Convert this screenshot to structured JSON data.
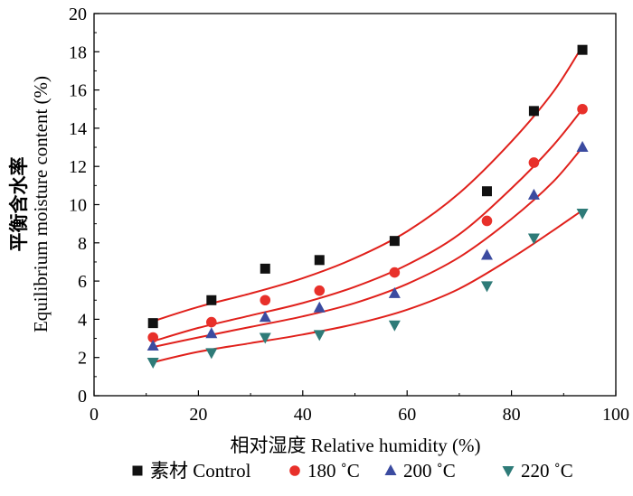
{
  "chart_data": {
    "type": "scatter",
    "title": "",
    "xlabel": "相对湿度 Relative humidity (%)",
    "ylabel_cn": "平衡含水率",
    "ylabel_en": "Equilibrium moisture content (%)",
    "xlim": [
      0,
      100
    ],
    "ylim": [
      0,
      20
    ],
    "xticks": [
      0,
      20,
      40,
      60,
      80,
      100
    ],
    "yticks": [
      0,
      2,
      4,
      6,
      8,
      10,
      12,
      14,
      16,
      18,
      20
    ],
    "grid": false,
    "legend_position": "bottom",
    "fit_line_color": "#e0201b",
    "series": [
      {
        "name": "素材  Control",
        "marker": "square",
        "color": "#111111",
        "x": [
          11.3,
          22.5,
          32.8,
          43.2,
          57.6,
          75.3,
          84.3,
          93.6
        ],
        "y": [
          3.8,
          5.0,
          6.65,
          7.1,
          8.1,
          10.7,
          14.9,
          18.1
        ],
        "fit": [
          [
            11.3,
            3.9
          ],
          [
            20,
            4.65
          ],
          [
            30,
            5.35
          ],
          [
            40,
            6.15
          ],
          [
            50,
            7.2
          ],
          [
            60,
            8.6
          ],
          [
            70,
            10.6
          ],
          [
            80,
            13.3
          ],
          [
            88,
            15.9
          ],
          [
            93.6,
            18.3
          ]
        ]
      },
      {
        "name": "180 ˚C",
        "marker": "circle",
        "color": "#e8302a",
        "x": [
          11.3,
          22.5,
          32.8,
          43.2,
          57.6,
          75.3,
          84.3,
          93.6
        ],
        "y": [
          3.05,
          3.85,
          5.0,
          5.5,
          6.45,
          9.15,
          12.2,
          15.0
        ],
        "fit": [
          [
            11.3,
            2.85
          ],
          [
            20,
            3.55
          ],
          [
            30,
            4.2
          ],
          [
            40,
            4.85
          ],
          [
            50,
            5.7
          ],
          [
            60,
            6.85
          ],
          [
            70,
            8.45
          ],
          [
            80,
            10.85
          ],
          [
            88,
            13.1
          ],
          [
            93.6,
            15.0
          ]
        ]
      },
      {
        "name": "200 ˚C",
        "marker": "triangle-up",
        "color": "#3b4ba0",
        "x": [
          11.3,
          22.5,
          32.8,
          43.2,
          57.6,
          75.3,
          84.3,
          93.6
        ],
        "y": [
          2.6,
          3.25,
          4.1,
          4.6,
          5.35,
          7.35,
          10.5,
          13.0
        ],
        "fit": [
          [
            11.3,
            2.55
          ],
          [
            20,
            3.05
          ],
          [
            30,
            3.6
          ],
          [
            40,
            4.15
          ],
          [
            50,
            4.85
          ],
          [
            60,
            5.85
          ],
          [
            70,
            7.25
          ],
          [
            80,
            9.25
          ],
          [
            88,
            11.2
          ],
          [
            93.6,
            13.0
          ]
        ]
      },
      {
        "name": "220 ˚C",
        "marker": "triangle-down",
        "color": "#2e7b78",
        "x": [
          11.3,
          22.5,
          32.8,
          43.2,
          57.6,
          75.3,
          84.3,
          93.6
        ],
        "y": [
          1.75,
          2.25,
          3.05,
          3.2,
          3.7,
          5.75,
          8.25,
          9.55
        ],
        "fit": [
          [
            11.3,
            1.75
          ],
          [
            20,
            2.3
          ],
          [
            30,
            2.75
          ],
          [
            40,
            3.2
          ],
          [
            50,
            3.75
          ],
          [
            60,
            4.5
          ],
          [
            70,
            5.6
          ],
          [
            80,
            7.2
          ],
          [
            88,
            8.65
          ],
          [
            93.6,
            9.7
          ]
        ]
      }
    ]
  }
}
